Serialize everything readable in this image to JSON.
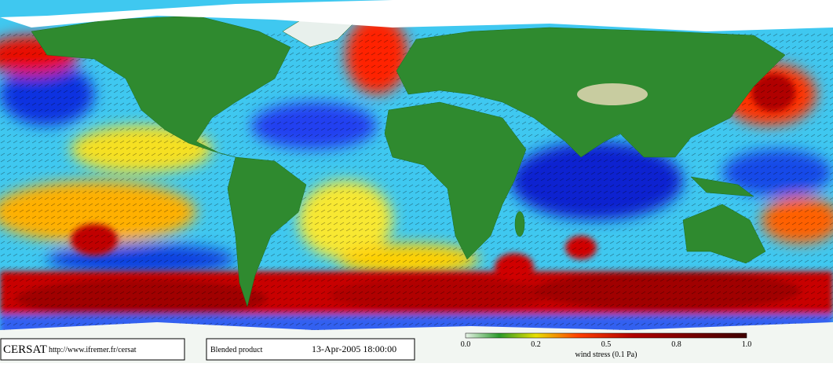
{
  "footer": {
    "logo": "CERSAT",
    "url": "http://www.ifremer.fr/cersat",
    "product": "Blended product",
    "timestamp": "13-Apr-2005 18:00:00"
  },
  "colorbar": {
    "tick_labels": [
      "0.0",
      "0.2",
      "0.5",
      "0.8",
      "1.0"
    ],
    "label": "wind stress (0.1 Pa)"
  }
}
